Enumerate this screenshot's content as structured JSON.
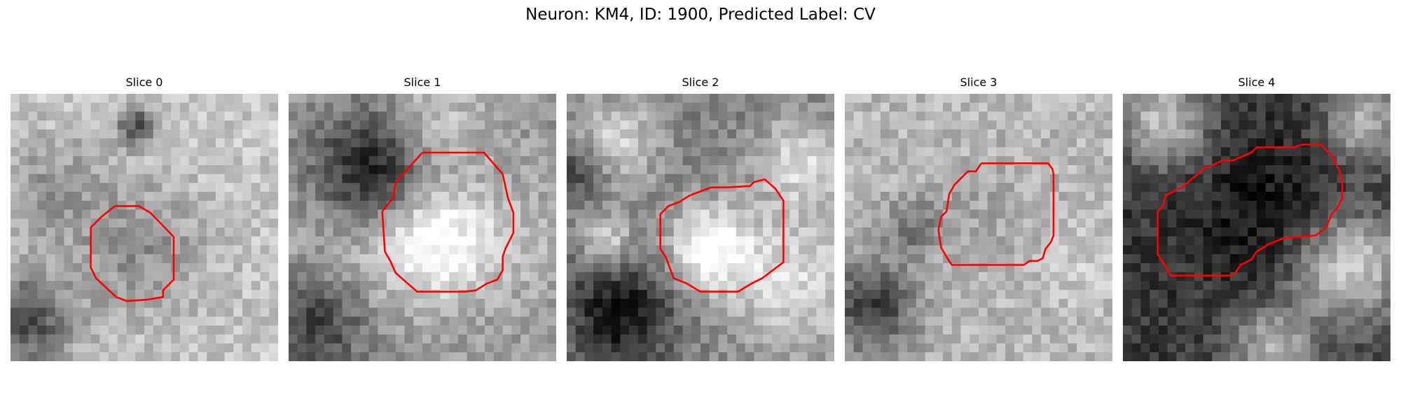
{
  "figure": {
    "title": "Neuron: KM4, ID: 1900, Predicted Label: CV",
    "contour_color": "#ff0000",
    "colormap": "gray",
    "grid_cells": 30,
    "panels": [
      {
        "title": "Slice 0",
        "intensity": {
          "base": 0.78,
          "blobs": [
            [
              0.48,
              0.58,
              0.18,
              -0.22
            ],
            [
              0.47,
              0.12,
              0.05,
              -0.45
            ],
            [
              0.05,
              0.85,
              0.12,
              -0.5
            ],
            [
              0.15,
              0.35,
              0.14,
              -0.18
            ]
          ]
        },
        "contour": [
          [
            0.39,
            0.42
          ],
          [
            0.48,
            0.42
          ],
          [
            0.523,
            0.445
          ],
          [
            0.61,
            0.535
          ],
          [
            0.61,
            0.695
          ],
          [
            0.57,
            0.735
          ],
          [
            0.57,
            0.76
          ],
          [
            0.51,
            0.77
          ],
          [
            0.435,
            0.775
          ],
          [
            0.395,
            0.76
          ],
          [
            0.32,
            0.69
          ],
          [
            0.3,
            0.65
          ],
          [
            0.3,
            0.5
          ],
          [
            0.34,
            0.46
          ]
        ]
      },
      {
        "title": "Slice 1",
        "intensity": {
          "base": 0.6,
          "blobs": [
            [
              0.55,
              0.55,
              0.15,
              0.4
            ],
            [
              0.2,
              0.6,
              0.2,
              0.12
            ],
            [
              0.3,
              0.28,
              0.15,
              -0.5
            ],
            [
              0.1,
              0.85,
              0.14,
              -0.4
            ],
            [
              0.55,
              0.1,
              0.12,
              0.2
            ],
            [
              0.85,
              0.55,
              0.18,
              0.1
            ]
          ]
        },
        "contour": [
          [
            0.5,
            0.22
          ],
          [
            0.73,
            0.22
          ],
          [
            0.8,
            0.3
          ],
          [
            0.82,
            0.39
          ],
          [
            0.84,
            0.445
          ],
          [
            0.84,
            0.52
          ],
          [
            0.81,
            0.58
          ],
          [
            0.8,
            0.61
          ],
          [
            0.8,
            0.66
          ],
          [
            0.78,
            0.695
          ],
          [
            0.74,
            0.71
          ],
          [
            0.7,
            0.735
          ],
          [
            0.66,
            0.74
          ],
          [
            0.48,
            0.74
          ],
          [
            0.4,
            0.67
          ],
          [
            0.38,
            0.625
          ],
          [
            0.36,
            0.59
          ],
          [
            0.35,
            0.44
          ],
          [
            0.39,
            0.39
          ],
          [
            0.4,
            0.33
          ]
        ]
      },
      {
        "title": "Slice 2",
        "intensity": {
          "base": 0.5,
          "blobs": [
            [
              0.53,
              0.57,
              0.11,
              0.5
            ],
            [
              0.18,
              0.18,
              0.12,
              0.35
            ],
            [
              0.88,
              0.25,
              0.12,
              0.35
            ],
            [
              0.85,
              0.7,
              0.2,
              0.35
            ],
            [
              0.15,
              0.55,
              0.07,
              0.35
            ],
            [
              0.2,
              0.82,
              0.14,
              -0.45
            ],
            [
              0.05,
              0.28,
              0.08,
              -0.3
            ]
          ]
        },
        "contour": [
          [
            0.54,
            0.35
          ],
          [
            0.6,
            0.35
          ],
          [
            0.685,
            0.345
          ],
          [
            0.7,
            0.33
          ],
          [
            0.74,
            0.32
          ],
          [
            0.78,
            0.355
          ],
          [
            0.81,
            0.4
          ],
          [
            0.81,
            0.63
          ],
          [
            0.77,
            0.66
          ],
          [
            0.73,
            0.69
          ],
          [
            0.69,
            0.71
          ],
          [
            0.64,
            0.74
          ],
          [
            0.5,
            0.74
          ],
          [
            0.45,
            0.71
          ],
          [
            0.4,
            0.69
          ],
          [
            0.37,
            0.61
          ],
          [
            0.35,
            0.58
          ],
          [
            0.35,
            0.45
          ],
          [
            0.38,
            0.42
          ],
          [
            0.42,
            0.405
          ],
          [
            0.46,
            0.38
          ],
          [
            0.5,
            0.365
          ]
        ]
      },
      {
        "title": "Slice 3",
        "intensity": {
          "base": 0.72,
          "blobs": [
            [
              0.5,
              0.45,
              0.12,
              -0.08
            ],
            [
              0.1,
              0.8,
              0.12,
              -0.5
            ],
            [
              0.25,
              0.5,
              0.08,
              -0.25
            ],
            [
              0.9,
              0.65,
              0.1,
              0.08
            ]
          ]
        },
        "contour": [
          [
            0.51,
            0.26
          ],
          [
            0.76,
            0.26
          ],
          [
            0.775,
            0.28
          ],
          [
            0.78,
            0.3
          ],
          [
            0.78,
            0.53
          ],
          [
            0.77,
            0.555
          ],
          [
            0.75,
            0.58
          ],
          [
            0.74,
            0.615
          ],
          [
            0.72,
            0.625
          ],
          [
            0.69,
            0.625
          ],
          [
            0.67,
            0.64
          ],
          [
            0.4,
            0.64
          ],
          [
            0.38,
            0.61
          ],
          [
            0.36,
            0.575
          ],
          [
            0.355,
            0.545
          ],
          [
            0.35,
            0.51
          ],
          [
            0.36,
            0.46
          ],
          [
            0.38,
            0.44
          ],
          [
            0.39,
            0.375
          ],
          [
            0.41,
            0.34
          ],
          [
            0.46,
            0.29
          ],
          [
            0.49,
            0.29
          ]
        ]
      },
      {
        "title": "Slice 4",
        "intensity": {
          "base": 0.22,
          "blobs": [
            [
              0.85,
              0.65,
              0.15,
              0.6
            ],
            [
              0.15,
              0.1,
              0.12,
              0.55
            ],
            [
              0.9,
              0.12,
              0.1,
              0.5
            ],
            [
              0.55,
              0.95,
              0.12,
              0.45
            ],
            [
              0.55,
              0.45,
              0.2,
              -0.15
            ]
          ]
        },
        "contour": [
          [
            0.37,
            0.25
          ],
          [
            0.41,
            0.25
          ],
          [
            0.48,
            0.22
          ],
          [
            0.5,
            0.2
          ],
          [
            0.53,
            0.2
          ],
          [
            0.64,
            0.2
          ],
          [
            0.67,
            0.19
          ],
          [
            0.74,
            0.19
          ],
          [
            0.78,
            0.23
          ],
          [
            0.81,
            0.29
          ],
          [
            0.82,
            0.34
          ],
          [
            0.82,
            0.39
          ],
          [
            0.8,
            0.43
          ],
          [
            0.78,
            0.45
          ],
          [
            0.76,
            0.5
          ],
          [
            0.72,
            0.53
          ],
          [
            0.6,
            0.54
          ],
          [
            0.55,
            0.56
          ],
          [
            0.5,
            0.59
          ],
          [
            0.48,
            0.62
          ],
          [
            0.44,
            0.64
          ],
          [
            0.42,
            0.67
          ],
          [
            0.4,
            0.68
          ],
          [
            0.18,
            0.68
          ],
          [
            0.13,
            0.6
          ],
          [
            0.13,
            0.44
          ],
          [
            0.15,
            0.42
          ],
          [
            0.16,
            0.38
          ],
          [
            0.22,
            0.35
          ],
          [
            0.28,
            0.3
          ],
          [
            0.3,
            0.28
          ],
          [
            0.33,
            0.27
          ]
        ]
      }
    ]
  }
}
